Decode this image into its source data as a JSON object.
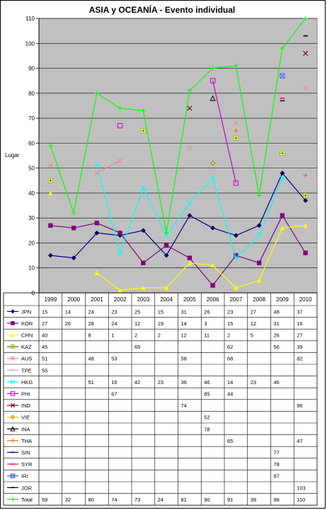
{
  "chart_data": {
    "type": "line",
    "title": "ASIA y OCEANÍA - Evento individual",
    "ylabel": "Lugar",
    "xlabel": "",
    "ylim": [
      0,
      110
    ],
    "yticks": [
      0,
      10,
      20,
      30,
      40,
      50,
      60,
      70,
      80,
      90,
      100,
      110
    ],
    "grid": true,
    "plot_bg": "#c0c0c0",
    "legend": "table-below",
    "categories": [
      "1999",
      "2000",
      "2001",
      "2002",
      "2003",
      "2004",
      "2005",
      "2006",
      "2007",
      "2008",
      "2009",
      "2010"
    ],
    "series": [
      {
        "name": "JPN",
        "color": "#000080",
        "marker": "diamond",
        "line": true,
        "values": [
          15,
          14,
          24,
          23,
          25,
          15,
          31,
          26,
          23,
          27,
          48,
          37
        ]
      },
      {
        "name": "KOR",
        "color": "#800080",
        "marker": "square",
        "line": true,
        "values": [
          27,
          26,
          28,
          24,
          12,
          19,
          14,
          3,
          15,
          12,
          31,
          16
        ]
      },
      {
        "name": "CHN",
        "color": "#ffff00",
        "marker": "triangle",
        "line": true,
        "values": [
          40,
          null,
          8,
          1,
          2,
          2,
          12,
          11,
          2,
          5,
          26,
          27
        ]
      },
      {
        "name": "KAZ",
        "color": "#009900",
        "marker": "plusbox",
        "line": false,
        "values": [
          45,
          null,
          null,
          null,
          65,
          null,
          null,
          null,
          62,
          null,
          56,
          39
        ]
      },
      {
        "name": "AUS",
        "color": "#ff8080",
        "marker": "x",
        "line": true,
        "values": [
          51,
          null,
          48,
          53,
          null,
          null,
          58,
          null,
          68,
          null,
          null,
          82
        ]
      },
      {
        "name": "TPE",
        "color": "#ff9999",
        "marker": "dash",
        "line": false,
        "values": [
          55,
          null,
          null,
          null,
          null,
          null,
          null,
          null,
          null,
          null,
          null,
          null
        ]
      },
      {
        "name": "HKG",
        "color": "#00ffff",
        "marker": "x",
        "line": true,
        "values": [
          null,
          null,
          51,
          16,
          42,
          23,
          36,
          46,
          14,
          23,
          46,
          null
        ]
      },
      {
        "name": "PHI",
        "color": "#cc00cc",
        "marker": "squareopen",
        "line": true,
        "values": [
          null,
          null,
          null,
          67,
          null,
          null,
          null,
          85,
          44,
          null,
          null,
          null
        ]
      },
      {
        "name": "IND",
        "color": "#800000",
        "marker": "x",
        "line": false,
        "values": [
          null,
          null,
          null,
          null,
          null,
          null,
          74,
          null,
          null,
          null,
          null,
          96
        ]
      },
      {
        "name": "VIE",
        "color": "#ffcc00",
        "marker": "diamond",
        "line": false,
        "values": [
          null,
          null,
          null,
          null,
          null,
          null,
          null,
          52,
          null,
          null,
          null,
          null
        ]
      },
      {
        "name": "INA",
        "color": "#000000",
        "marker": "triangleopen",
        "line": false,
        "values": [
          null,
          null,
          null,
          null,
          null,
          null,
          null,
          78,
          null,
          null,
          null,
          null
        ]
      },
      {
        "name": "THA",
        "color": "#ff6600",
        "marker": "plus",
        "line": false,
        "values": [
          null,
          null,
          null,
          null,
          null,
          null,
          null,
          null,
          65,
          null,
          null,
          47
        ]
      },
      {
        "name": "SIN",
        "color": "#000080",
        "marker": "dash",
        "line": false,
        "values": [
          null,
          null,
          null,
          null,
          null,
          null,
          null,
          null,
          null,
          null,
          77,
          null
        ]
      },
      {
        "name": "SYR",
        "color": "#ff0066",
        "marker": "dash",
        "line": false,
        "values": [
          null,
          null,
          null,
          null,
          null,
          null,
          null,
          null,
          null,
          null,
          78,
          null
        ]
      },
      {
        "name": "IRI",
        "color": "#3366ff",
        "marker": "xbox",
        "line": false,
        "values": [
          null,
          null,
          null,
          null,
          null,
          null,
          null,
          null,
          null,
          null,
          87,
          null
        ]
      },
      {
        "name": "JOR",
        "color": "#000000",
        "marker": "dash",
        "line": false,
        "values": [
          null,
          null,
          null,
          null,
          null,
          null,
          null,
          null,
          null,
          null,
          null,
          103
        ]
      },
      {
        "name": "Total",
        "color": "#00ff00",
        "marker": "plus",
        "line": true,
        "values": [
          59,
          32,
          80,
          74,
          73,
          24,
          81,
          90,
          91,
          39,
          98,
          110
        ]
      }
    ]
  }
}
